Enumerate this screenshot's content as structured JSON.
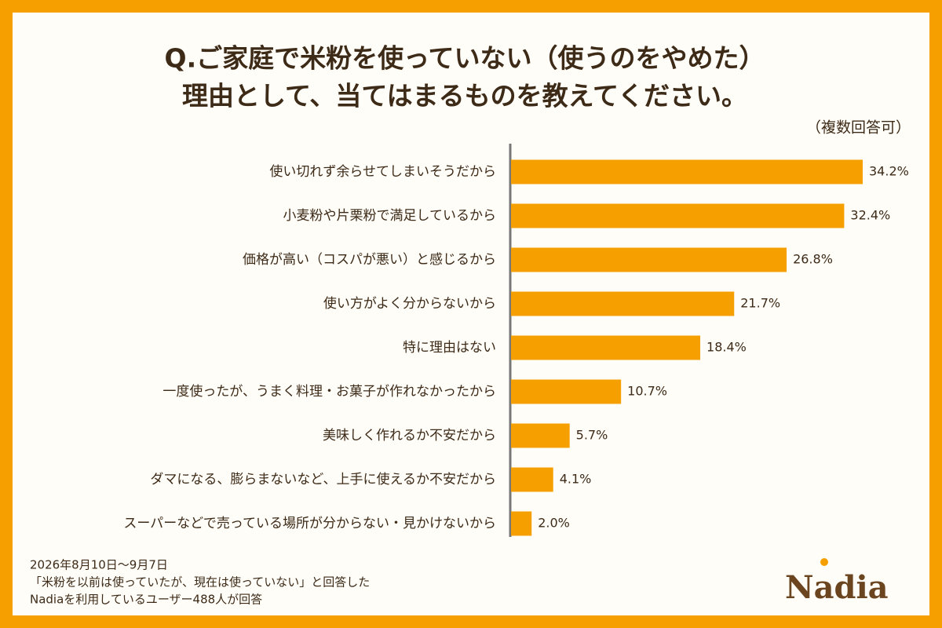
{
  "chart_data": {
    "type": "hbar",
    "title": [
      "Q.ご家庭で米粉を使っていない（使うのをやめた）",
      "理由として、当てはまるものを教えてください。"
    ],
    "subtitle": "（複数回答可）",
    "categories": [
      "使い切れず余らせてしまいそうだから",
      "小麦粉や片栗粉で満足しているから",
      "価格が高い（コスパが悪い）と感じるから",
      "使い方がよく分からないから",
      "特に理由はない",
      "一度使ったが、うまく料理・お菓子が作れなかったから",
      "美味しく作れるか不安だから",
      "ダマになる、膨らまないなど、上手に使えるか不安だから",
      "スーパーなどで売っている場所が分からない・見かけないから"
    ],
    "values": [
      34.2,
      32.4,
      26.8,
      21.7,
      18.4,
      10.7,
      5.7,
      4.1,
      2.0
    ],
    "value_labels": [
      "34.2%",
      "32.4%",
      "26.8%",
      "21.7%",
      "18.4%",
      "10.7%",
      "5.7%",
      "4.1%",
      "2.0%"
    ],
    "color": "#f5a000",
    "notes": [
      "2026年8月10日〜9月7日",
      "「米粉を以前は使っていたが、現在は使っていない」と回答した",
      "Nadiaを利用しているユーザー488人が回答"
    ]
  },
  "logo": "Nadia"
}
